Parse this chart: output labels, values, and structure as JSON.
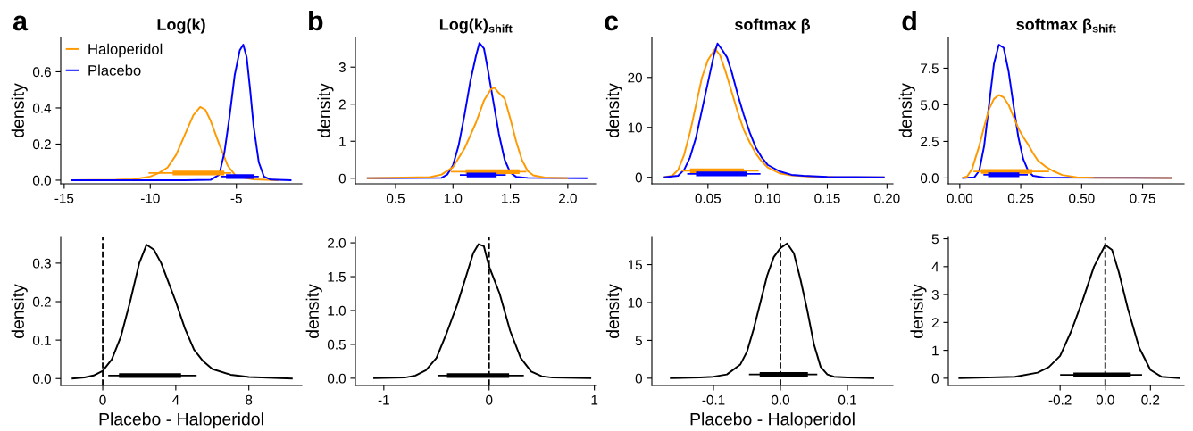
{
  "chart_data": [
    {
      "type": "line",
      "title": "Log(k)",
      "ylabel": "density",
      "annotations": [
        "a"
      ],
      "legend": "top left",
      "grid": false,
      "marker": "none",
      "line_style": "solid",
      "xlim": [
        -15.2,
        -1.2
      ],
      "xticks": [
        -15,
        -10,
        -5
      ],
      "ylim": [
        -0.02,
        0.79
      ],
      "yticks": [
        {
          "value": 0,
          "label": "0.0"
        },
        0.2,
        0.4,
        0.6
      ],
      "series": [
        {
          "name": "Haloperidol",
          "color": "#ff9900",
          "x": [
            -14.6,
            -12,
            -11,
            -10,
            -9.5,
            -9,
            -8.5,
            -8,
            -7.5,
            -7.1,
            -6.8,
            -6.5,
            -6,
            -5.5,
            -5,
            -4,
            -2.5
          ],
          "values": [
            0,
            0.002,
            0.005,
            0.02,
            0.04,
            0.07,
            0.14,
            0.25,
            0.36,
            0.405,
            0.39,
            0.33,
            0.2,
            0.08,
            0.02,
            0.005,
            0
          ]
        },
        {
          "name": "Placebo",
          "color": "#0000ff",
          "x": [
            -14.6,
            -8,
            -6.5,
            -6,
            -5.7,
            -5.4,
            -5.1,
            -4.8,
            -4.6,
            -4.4,
            -4.2,
            -4,
            -3.7,
            -3.4,
            -3,
            -1.8
          ],
          "values": [
            0,
            0,
            0.002,
            0.03,
            0.15,
            0.35,
            0.58,
            0.72,
            0.75,
            0.68,
            0.5,
            0.3,
            0.1,
            0.02,
            0.003,
            0
          ]
        },
        {
          "color": "#ff9900",
          "x": [
            -10.1,
            -5.3
          ],
          "values": [
            0.04,
            0.04
          ]
        },
        {
          "color": "#ff9900",
          "x": [
            -8.7,
            -5.7
          ],
          "values": [
            0.04,
            0.04
          ]
        },
        {
          "color": "#0000ff",
          "x": [
            -5.9,
            -3.7
          ],
          "values": [
            0.02,
            0.02
          ]
        },
        {
          "color": "#0000ff",
          "x": [
            -5.6,
            -4.0
          ],
          "values": [
            0.02,
            0.02
          ]
        }
      ]
    },
    {
      "type": "line",
      "title": "Log(k)$_{shift}$",
      "ylabel": "density",
      "annotations": [
        "b"
      ],
      "grid": false,
      "marker": "none",
      "line_style": "solid",
      "xlim": [
        0.15,
        2.25
      ],
      "xticks": [
        0.5,
        {
          "value": 1,
          "label": "1.0"
        },
        1.5,
        {
          "value": 2,
          "label": "2.0"
        }
      ],
      "ylim": [
        -0.15,
        3.8
      ],
      "yticks": [
        0,
        1,
        2,
        3
      ],
      "series": [
        {
          "color": "#0000ff",
          "x": [
            0.25,
            0.9,
            0.95,
            1.0,
            1.05,
            1.1,
            1.15,
            1.2,
            1.23,
            1.27,
            1.3,
            1.35,
            1.4,
            1.45,
            1.5,
            1.55,
            1.65,
            2.17
          ],
          "values": [
            0,
            0.01,
            0.1,
            0.35,
            0.9,
            1.7,
            2.6,
            3.3,
            3.65,
            3.5,
            3.0,
            2.1,
            1.2,
            0.5,
            0.15,
            0.04,
            0.01,
            0
          ]
        },
        {
          "color": "#ff9900",
          "x": [
            0.25,
            0.8,
            0.9,
            1.0,
            1.1,
            1.2,
            1.27,
            1.33,
            1.36,
            1.4,
            1.45,
            1.5,
            1.55,
            1.6,
            1.65,
            1.7,
            1.8,
            2.0
          ],
          "values": [
            0,
            0.03,
            0.1,
            0.3,
            0.8,
            1.5,
            2.1,
            2.4,
            2.45,
            2.3,
            2.15,
            1.6,
            1.0,
            0.5,
            0.2,
            0.08,
            0.02,
            0
          ]
        },
        {
          "color": "#ff9900",
          "x": [
            0.98,
            1.64
          ],
          "values": [
            0.18,
            0.18
          ]
        },
        {
          "color": "#ff9900",
          "x": [
            1.11,
            1.58
          ],
          "values": [
            0.18,
            0.18
          ]
        },
        {
          "color": "#0000ff",
          "x": [
            1.06,
            1.46
          ],
          "values": [
            0.09,
            0.09
          ]
        },
        {
          "color": "#0000ff",
          "x": [
            1.12,
            1.38
          ],
          "values": [
            0.09,
            0.09
          ]
        }
      ]
    },
    {
      "type": "line",
      "title": "softmax β",
      "ylabel": "density",
      "annotations": [
        "c"
      ],
      "grid": false,
      "marker": "none",
      "line_style": "solid",
      "xlim": [
        0.003,
        0.205
      ],
      "xticks": [
        0.05,
        {
          "value": 0.1,
          "label": "0.10"
        },
        0.15,
        {
          "value": 0.2,
          "label": "0.20"
        }
      ],
      "ylim": [
        -1.3,
        28
      ],
      "yticks": [
        0,
        10,
        20
      ],
      "series": [
        {
          "color": "#ff9900",
          "x": [
            0.013,
            0.02,
            0.025,
            0.03,
            0.035,
            0.04,
            0.045,
            0.05,
            0.056,
            0.06,
            0.065,
            0.07,
            0.075,
            0.08,
            0.085,
            0.09,
            0.095,
            0.1,
            0.11,
            0.12,
            0.14,
            0.16,
            0.198
          ],
          "values": [
            0,
            0.3,
            1.5,
            4.5,
            9,
            14.5,
            20,
            23.5,
            25.7,
            24.5,
            21,
            17,
            13,
            9.5,
            7,
            4.8,
            3.2,
            2,
            0.8,
            0.4,
            0.1,
            0,
            0
          ]
        },
        {
          "color": "#0000ff",
          "x": [
            0.013,
            0.025,
            0.03,
            0.035,
            0.04,
            0.045,
            0.05,
            0.055,
            0.058,
            0.062,
            0.066,
            0.07,
            0.075,
            0.08,
            0.085,
            0.09,
            0.095,
            0.1,
            0.11,
            0.12,
            0.13,
            0.15,
            0.198
          ],
          "values": [
            0,
            0.3,
            1.5,
            4,
            8,
            13.5,
            19,
            24.5,
            26.8,
            25.5,
            24,
            21,
            16.5,
            12.5,
            9,
            6,
            4,
            2.5,
            1.2,
            0.5,
            0.3,
            0.1,
            0
          ]
        },
        {
          "color": "#ff9900",
          "x": [
            0.028,
            0.0926
          ],
          "values": [
            1.3,
            1.3
          ]
        },
        {
          "color": "#ff9900",
          "x": [
            0.035,
            0.08
          ],
          "values": [
            1.3,
            1.3
          ]
        },
        {
          "color": "#0000ff",
          "x": [
            0.0326,
            0.094
          ],
          "values": [
            0.7,
            0.7
          ]
        },
        {
          "color": "#0000ff",
          "x": [
            0.04,
            0.0826
          ],
          "values": [
            0.7,
            0.7
          ]
        }
      ]
    },
    {
      "type": "line",
      "title": "softmax β$_{shift}$",
      "ylabel": "density",
      "annotations": [
        "d"
      ],
      "grid": false,
      "marker": "none",
      "line_style": "solid",
      "xlim": [
        -0.047,
        0.92
      ],
      "xticks": [
        {
          "value": 0,
          "label": "0.00"
        },
        0.25,
        {
          "value": 0.5,
          "label": "0.50"
        },
        0.75
      ],
      "ylim": [
        -0.4,
        9.6
      ],
      "yticks": [
        {
          "value": 0,
          "label": "0.0"
        },
        2.5,
        {
          "value": 5,
          "label": "5.0"
        },
        7.5
      ],
      "series": [
        {
          "color": "#0000ff",
          "x": [
            0.01,
            0.06,
            0.08,
            0.1,
            0.12,
            0.14,
            0.16,
            0.18,
            0.2,
            0.22,
            0.24,
            0.26,
            0.28,
            0.3,
            0.35,
            0.87
          ],
          "values": [
            0,
            0.05,
            0.5,
            2.2,
            5,
            7.8,
            9.1,
            8.9,
            7.3,
            5,
            2.8,
            1.3,
            0.5,
            0.15,
            0.02,
            0
          ]
        },
        {
          "color": "#ff9900",
          "x": [
            0.01,
            0.03,
            0.05,
            0.08,
            0.1,
            0.12,
            0.14,
            0.16,
            0.18,
            0.2,
            0.22,
            0.24,
            0.26,
            0.28,
            0.3,
            0.32,
            0.35,
            0.38,
            0.42,
            0.48,
            0.55,
            0.87
          ],
          "values": [
            0,
            0.1,
            0.6,
            2.2,
            3.5,
            4.7,
            5.4,
            5.67,
            5.5,
            5,
            4.2,
            3.4,
            2.8,
            2.3,
            1.7,
            1.2,
            0.8,
            0.5,
            0.2,
            0.05,
            0.01,
            0
          ]
        },
        {
          "color": "#ff9900",
          "x": [
            0.056,
            0.366
          ],
          "values": [
            0.45,
            0.45
          ]
        },
        {
          "color": "#ff9900",
          "x": [
            0.087,
            0.297
          ],
          "values": [
            0.45,
            0.45
          ]
        },
        {
          "color": "#0000ff",
          "x": [
            0.097,
            0.279
          ],
          "values": [
            0.22,
            0.22
          ]
        },
        {
          "color": "#0000ff",
          "x": [
            0.116,
            0.244
          ],
          "values": [
            0.22,
            0.22
          ]
        }
      ]
    },
    {
      "type": "line",
      "xlabel": "Placebo - Haloperidol",
      "ylabel": "density",
      "grid": false,
      "marker": "none",
      "line_style": "solid",
      "xlim": [
        -2.3,
        10.9
      ],
      "xticks": [
        0,
        4,
        8
      ],
      "ylim": [
        -0.018,
        0.367
      ],
      "yticks": [
        {
          "value": 0,
          "label": "0.0"
        },
        0.1,
        0.2,
        0.3
      ],
      "ref_lines": [
        {
          "axis": "x",
          "value": 0,
          "color": "#000000",
          "line_style": "dashed"
        }
      ],
      "series": [
        {
          "color": "#000000",
          "x": [
            -1.7,
            -1,
            -0.5,
            0,
            0.5,
            1,
            1.5,
            2,
            2.4,
            2.8,
            3.2,
            3.6,
            4,
            4.5,
            5,
            5.5,
            6,
            7,
            8,
            10.4
          ],
          "values": [
            0,
            0.003,
            0.008,
            0.02,
            0.05,
            0.11,
            0.2,
            0.3,
            0.348,
            0.335,
            0.3,
            0.25,
            0.2,
            0.13,
            0.075,
            0.045,
            0.025,
            0.01,
            0.004,
            0
          ]
        },
        {
          "color": "#000000",
          "x": [
            0.3,
            5.14
          ],
          "values": [
            0.008,
            0.008
          ]
        },
        {
          "color": "#000000",
          "x": [
            0.89,
            4.29
          ],
          "values": [
            0.008,
            0.008
          ]
        }
      ]
    },
    {
      "type": "line",
      "ylabel": "density",
      "grid": false,
      "marker": "none",
      "line_style": "solid",
      "xlim": [
        -1.27,
        1.02
      ],
      "xticks": [
        -1,
        0,
        1
      ],
      "ylim": [
        -0.107,
        2.08
      ],
      "yticks": [
        {
          "value": 0,
          "label": "0.0"
        },
        0.5,
        {
          "value": 1,
          "label": "1.0"
        },
        1.5,
        {
          "value": 2,
          "label": "2.0"
        }
      ],
      "ref_lines": [
        {
          "axis": "x",
          "value": 0,
          "color": "#000000",
          "line_style": "dashed"
        }
      ],
      "series": [
        {
          "color": "#000000",
          "x": [
            -1.1,
            -0.8,
            -0.7,
            -0.6,
            -0.5,
            -0.4,
            -0.3,
            -0.2,
            -0.15,
            -0.1,
            -0.05,
            0,
            0.05,
            0.1,
            0.2,
            0.3,
            0.4,
            0.5,
            0.6,
            0.97
          ],
          "values": [
            0,
            0.01,
            0.04,
            0.12,
            0.3,
            0.68,
            1.1,
            1.6,
            1.85,
            1.98,
            1.95,
            1.65,
            1.45,
            1.25,
            0.7,
            0.3,
            0.1,
            0.03,
            0.01,
            0
          ]
        },
        {
          "color": "#000000",
          "x": [
            -0.49,
            0.33
          ],
          "values": [
            0.04,
            0.04
          ]
        },
        {
          "color": "#000000",
          "x": [
            -0.4,
            0.19
          ],
          "values": [
            0.04,
            0.04
          ]
        }
      ]
    },
    {
      "type": "line",
      "xlabel": "Placebo - Haloperidol",
      "ylabel": "density",
      "grid": false,
      "marker": "none",
      "line_style": "solid",
      "xlim": [
        -0.192,
        0.168
      ],
      "xticks": [
        -0.1,
        {
          "value": 0,
          "label": "0.0"
        },
        0.1
      ],
      "ylim": [
        -0.96,
        18.6
      ],
      "yticks": [
        0,
        5,
        10,
        15
      ],
      "ref_lines": [
        {
          "axis": "x",
          "value": 0,
          "color": "#000000",
          "line_style": "dashed"
        }
      ],
      "series": [
        {
          "color": "#000000",
          "x": [
            -0.165,
            -0.12,
            -0.1,
            -0.08,
            -0.06,
            -0.05,
            -0.04,
            -0.03,
            -0.02,
            -0.01,
            0,
            0.01,
            0.02,
            0.03,
            0.04,
            0.05,
            0.06,
            0.07,
            0.08,
            0.1,
            0.14
          ],
          "values": [
            0,
            0.1,
            0.2,
            0.5,
            1.8,
            3.5,
            6.5,
            10,
            13.5,
            16,
            17.2,
            17.8,
            16.5,
            13,
            9,
            4.5,
            1.5,
            0.5,
            0.2,
            0.1,
            0
          ]
        },
        {
          "color": "#000000",
          "x": [
            -0.047,
            0.055
          ],
          "values": [
            0.5,
            0.5
          ]
        },
        {
          "color": "#000000",
          "x": [
            -0.031,
            0.041
          ],
          "values": [
            0.5,
            0.5
          ]
        }
      ]
    },
    {
      "type": "line",
      "ylabel": "density",
      "grid": false,
      "marker": "none",
      "line_style": "solid",
      "xlim": [
        -0.695,
        0.349
      ],
      "xticks": [
        -0.2,
        {
          "value": 0,
          "label": "0.0"
        },
        0.2
      ],
      "ylim": [
        -0.26,
        5.05
      ],
      "yticks": [
        0,
        1,
        2,
        3,
        4,
        5
      ],
      "ref_lines": [
        {
          "axis": "x",
          "value": 0,
          "color": "#000000",
          "line_style": "dashed"
        }
      ],
      "series": [
        {
          "color": "#000000",
          "x": [
            -0.65,
            -0.4,
            -0.3,
            -0.25,
            -0.2,
            -0.15,
            -0.1,
            -0.05,
            0,
            0.03,
            0.06,
            0.1,
            0.15,
            0.2,
            0.25,
            0.33
          ],
          "values": [
            0,
            0.05,
            0.2,
            0.4,
            0.8,
            1.7,
            2.8,
            4.0,
            4.78,
            4.6,
            3.8,
            2.5,
            1.1,
            0.3,
            0.05,
            0
          ]
        },
        {
          "color": "#000000",
          "x": [
            -0.2,
            0.163
          ],
          "values": [
            0.12,
            0.12
          ]
        },
        {
          "color": "#000000",
          "x": [
            -0.141,
            0.113
          ],
          "values": [
            0.12,
            0.12
          ]
        }
      ]
    }
  ]
}
